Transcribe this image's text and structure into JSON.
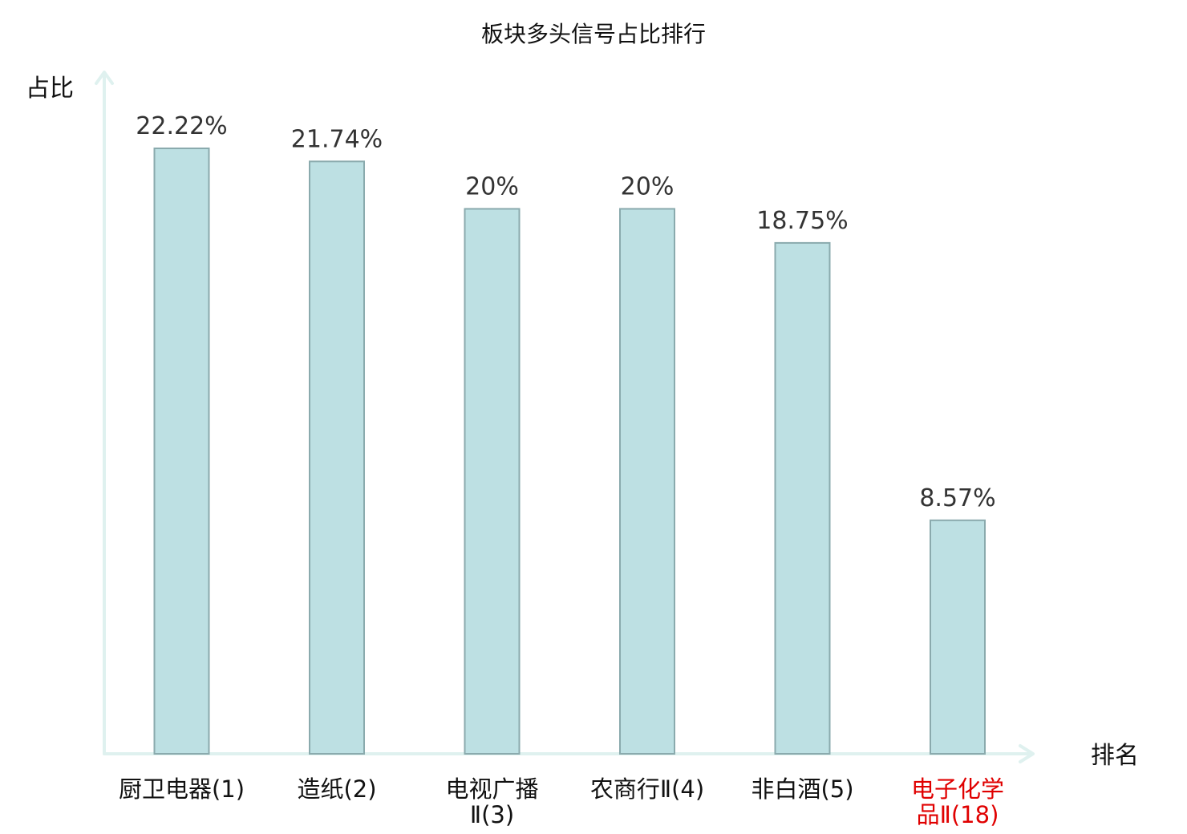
{
  "chart_data": {
    "type": "bar",
    "title": "板块多头信号占比排行",
    "ylabel": "占比",
    "xlabel": "排名",
    "categories": [
      [
        "厨卫电器(1)"
      ],
      [
        "造纸(2)"
      ],
      [
        "电视广播",
        "Ⅱ(3)"
      ],
      [
        "农商行Ⅱ(4)"
      ],
      [
        "非白酒(5)"
      ],
      [
        "电子化学",
        "品Ⅱ(18)"
      ]
    ],
    "values": [
      22.22,
      21.74,
      20,
      20,
      18.75,
      8.57
    ],
    "value_labels": [
      "22.22%",
      "21.74%",
      "20%",
      "20%",
      "18.75%",
      "8.57%"
    ],
    "highlight_index": 5,
    "ylim": [
      0,
      25
    ],
    "grid": false,
    "colors": {
      "bar_fill": "#bde0e3",
      "bar_stroke": "#8aaaad",
      "axis": "#dff1ef",
      "highlight_text": "#e00000"
    }
  }
}
